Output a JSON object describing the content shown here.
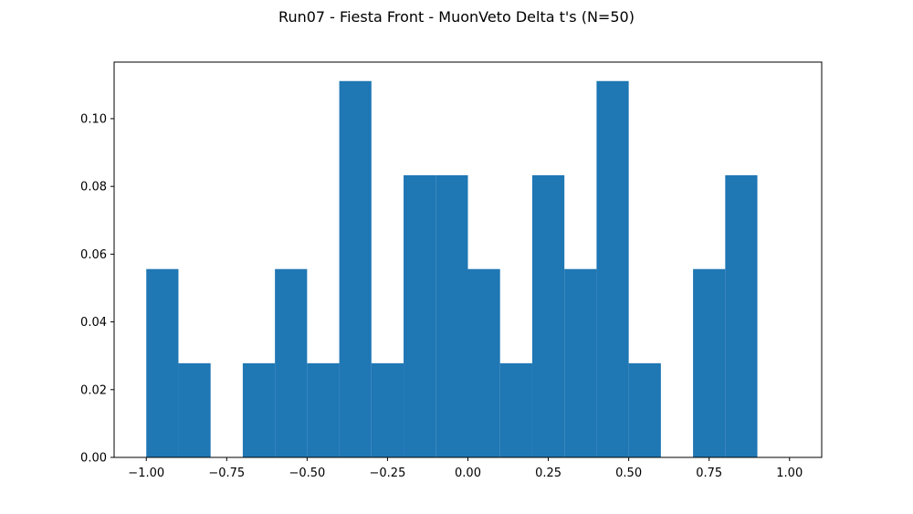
{
  "chart_data": {
    "type": "bar",
    "title": "Run07 - Fiesta Front - MuonVeto Delta t's (N=50)",
    "xlabel": "",
    "ylabel": "",
    "bin_edges": [
      -1.0,
      -0.9,
      -0.8,
      -0.7,
      -0.6,
      -0.5,
      -0.4,
      -0.3,
      -0.2,
      -0.1,
      0.0,
      0.1,
      0.2,
      0.3,
      0.4,
      0.5,
      0.6,
      0.7,
      0.8,
      0.9,
      1.0
    ],
    "values": [
      0.0556,
      0.0278,
      0.0,
      0.0278,
      0.0556,
      0.0278,
      0.1111,
      0.0278,
      0.0833,
      0.0833,
      0.0556,
      0.0278,
      0.0833,
      0.0556,
      0.1111,
      0.0278,
      0.0,
      0.0556,
      0.0833,
      0.0
    ],
    "xlim": [
      -1.1,
      1.1
    ],
    "ylim": [
      0.0,
      0.1167
    ],
    "x_ticks": [
      -1.0,
      -0.75,
      -0.5,
      -0.25,
      0.0,
      0.25,
      0.5,
      0.75,
      1.0
    ],
    "x_tick_labels": [
      "−1.00",
      "−0.75",
      "−0.50",
      "−0.25",
      "0.00",
      "0.25",
      "0.50",
      "0.75",
      "1.00"
    ],
    "y_ticks": [
      0.0,
      0.02,
      0.04,
      0.06,
      0.08,
      0.1
    ],
    "y_tick_labels": [
      "0.00",
      "0.02",
      "0.04",
      "0.06",
      "0.08",
      "0.10"
    ],
    "grid": false,
    "legend": "none",
    "bar_color": "#1f77b4"
  }
}
